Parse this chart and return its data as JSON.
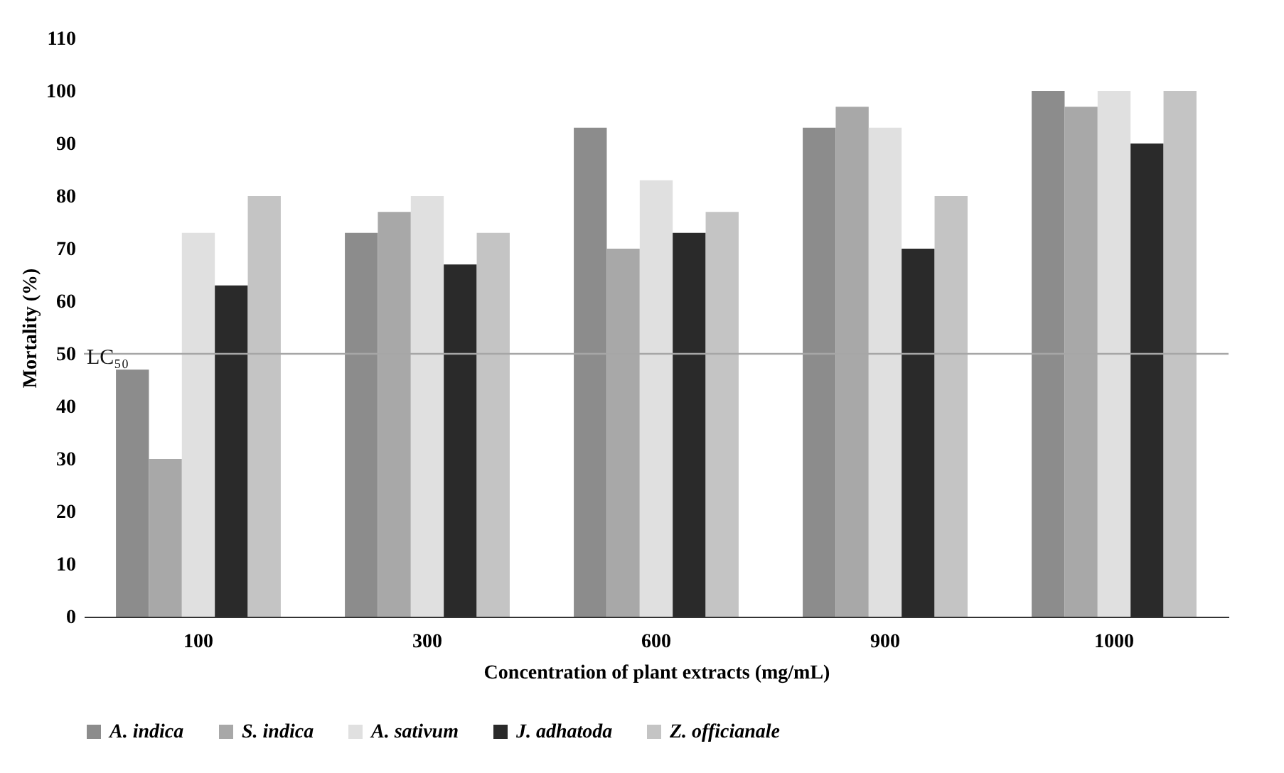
{
  "chart_data": {
    "type": "bar",
    "xlabel": "Concentration of plant extracts (mg/mL)",
    "ylabel": "Mortality (%)",
    "categories": [
      "100",
      "300",
      "600",
      "900",
      "1000"
    ],
    "series": [
      {
        "name": "A. indica",
        "color": "#8c8c8c",
        "values": [
          47,
          73,
          93,
          93,
          100
        ]
      },
      {
        "name": "S. indica",
        "color": "#a8a8a8",
        "values": [
          30,
          77,
          70,
          97,
          97
        ]
      },
      {
        "name": "A. sativum",
        "color": "#e0e0e0",
        "values": [
          73,
          80,
          83,
          93,
          100
        ]
      },
      {
        "name": "J. adhatoda",
        "color": "#2a2a2a",
        "values": [
          63,
          67,
          73,
          70,
          90
        ]
      },
      {
        "name": "Z. officianale",
        "color": "#c4c4c4",
        "values": [
          80,
          73,
          77,
          80,
          100
        ]
      }
    ],
    "ylim": [
      0,
      110
    ],
    "yticks": [
      0,
      10,
      20,
      30,
      40,
      50,
      60,
      70,
      80,
      90,
      100,
      110
    ],
    "ref_lines": [
      {
        "axis": "y",
        "value": 50,
        "label": "LC₅₀",
        "color": "#a6a6a6"
      }
    ],
    "grid": false,
    "legend": "bottom"
  }
}
